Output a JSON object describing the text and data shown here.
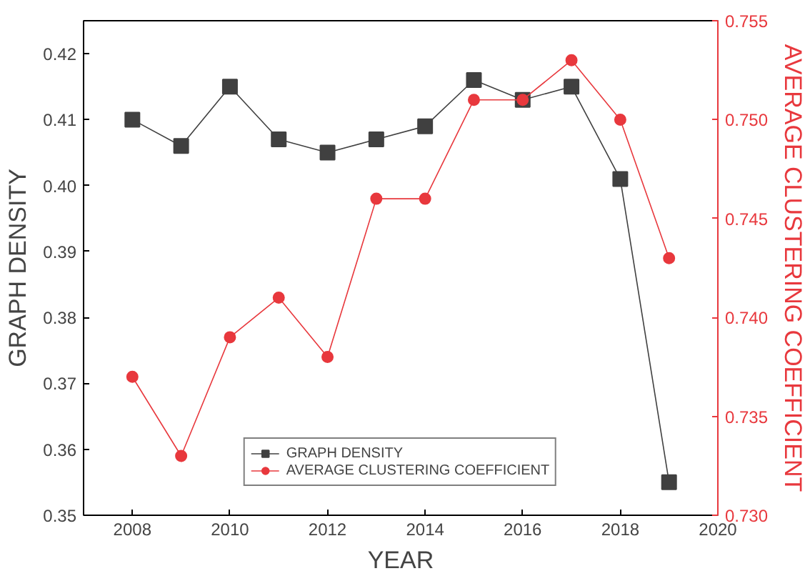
{
  "chart_data": {
    "type": "line",
    "xlabel": "YEAR",
    "ylabel": "GRAPH DENSITY",
    "y2label": "AVERAGE CLUSTERING COEFFICIENT",
    "x": [
      2008,
      2009,
      2010,
      2011,
      2012,
      2013,
      2014,
      2015,
      2016,
      2017,
      2018,
      2019
    ],
    "series": [
      {
        "name": "GRAPH DENSITY",
        "color": "#404040",
        "marker": "square",
        "values": [
          0.41,
          0.406,
          0.415,
          0.407,
          0.405,
          0.407,
          0.409,
          0.416,
          0.413,
          0.415,
          0.401,
          0.355
        ]
      },
      {
        "name": "AVERAGE CLUSTERING COEFFICIENT",
        "color": "#e8383d",
        "marker": "circle",
        "axis": "y2",
        "values": [
          0.737,
          0.733,
          0.739,
          0.741,
          0.738,
          0.746,
          0.746,
          0.751,
          0.751,
          0.753,
          0.75,
          0.743
        ]
      }
    ],
    "xlim": [
      2007,
      2020
    ],
    "xticks": [
      2008,
      2010,
      2012,
      2014,
      2016,
      2018,
      2020
    ],
    "ylim": [
      0.35,
      0.425
    ],
    "yticks": [
      {
        "value": 0.35,
        "label": "0.35"
      },
      {
        "value": 0.36,
        "label": "0.36"
      },
      {
        "value": 0.37,
        "label": "0.37"
      },
      {
        "value": 0.38,
        "label": "0.38"
      },
      {
        "value": 0.39,
        "label": "0.39"
      },
      {
        "value": 0.4,
        "label": "0.40"
      },
      {
        "value": 0.41,
        "label": "0.41"
      },
      {
        "value": 0.42,
        "label": "0.42"
      }
    ],
    "y2lim": [
      0.73,
      0.755
    ],
    "y2ticks": [
      {
        "value": 0.73,
        "label": "0.730"
      },
      {
        "value": 0.735,
        "label": "0.735"
      },
      {
        "value": 0.74,
        "label": "0.740"
      },
      {
        "value": 0.745,
        "label": "0.745"
      },
      {
        "value": 0.75,
        "label": "0.750"
      },
      {
        "value": 0.755,
        "label": "0.755"
      }
    ],
    "grid": false,
    "legend": "bottom",
    "line_style": "solid"
  }
}
